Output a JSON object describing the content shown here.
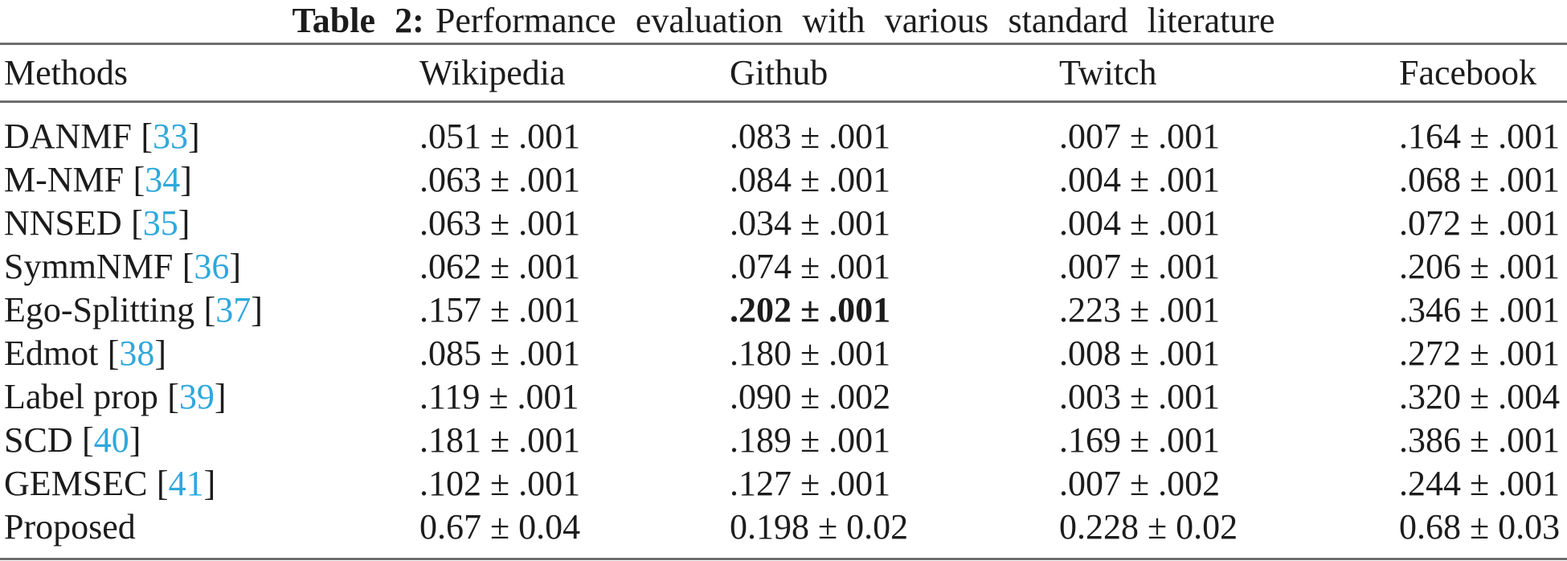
{
  "caption": {
    "label": "Table 2:",
    "text": "Performance evaluation with various standard literature"
  },
  "table": {
    "columns": [
      "Methods",
      "Wikipedia",
      "Github",
      "Twitch",
      "Facebook"
    ],
    "ref_brackets": [
      "[",
      "]"
    ],
    "rows": [
      {
        "method": "DANMF",
        "ref": "33",
        "values": [
          ".051 ± .001",
          ".083 ± .001",
          ".007 ± .001",
          ".164 ± .001"
        ]
      },
      {
        "method": "M-NMF",
        "ref": "34",
        "values": [
          ".063 ± .001",
          ".084 ± .001",
          ".004 ± .001",
          ".068 ± .001"
        ]
      },
      {
        "method": "NNSED",
        "ref": "35",
        "values": [
          ".063 ± .001",
          ".034 ± .001",
          ".004 ± .001",
          ".072 ± .001"
        ]
      },
      {
        "method": "SymmNMF",
        "ref": "36",
        "values": [
          ".062 ± .001",
          ".074 ± .001",
          ".007 ± .001",
          ".206 ± .001"
        ]
      },
      {
        "method": "Ego-Splitting",
        "ref": "37",
        "values": [
          ".157 ± .001",
          ".202 ± .001",
          ".223 ± .001",
          ".346 ± .001"
        ],
        "bold_value_index": 1
      },
      {
        "method": "Edmot",
        "ref": "38",
        "values": [
          ".085 ± .001",
          ".180 ± .001",
          ".008 ± .001",
          ".272 ± .001"
        ]
      },
      {
        "method": "Label prop",
        "ref": "39",
        "values": [
          ".119 ± .001",
          ".090 ± .002",
          ".003 ± .001",
          ".320 ± .004"
        ]
      },
      {
        "method": "SCD",
        "ref": "40",
        "values": [
          ".181 ± .001",
          ".189 ± .001",
          ".169 ± .001",
          ".386 ± .001"
        ]
      },
      {
        "method": "GEMSEC",
        "ref": "41",
        "values": [
          ".102 ± .001",
          ".127 ± .001",
          ".007 ± .002",
          ".244 ± .001"
        ]
      },
      {
        "method": "Proposed",
        "ref": null,
        "values": [
          "0.67 ± 0.04",
          "0.198 ± 0.02",
          "0.228 ± 0.02",
          "0.68 ± 0.03"
        ]
      }
    ]
  },
  "colors": {
    "citation": "#2ea8dc",
    "text": "#1c1c1c",
    "rule": "#6e6e6e"
  }
}
